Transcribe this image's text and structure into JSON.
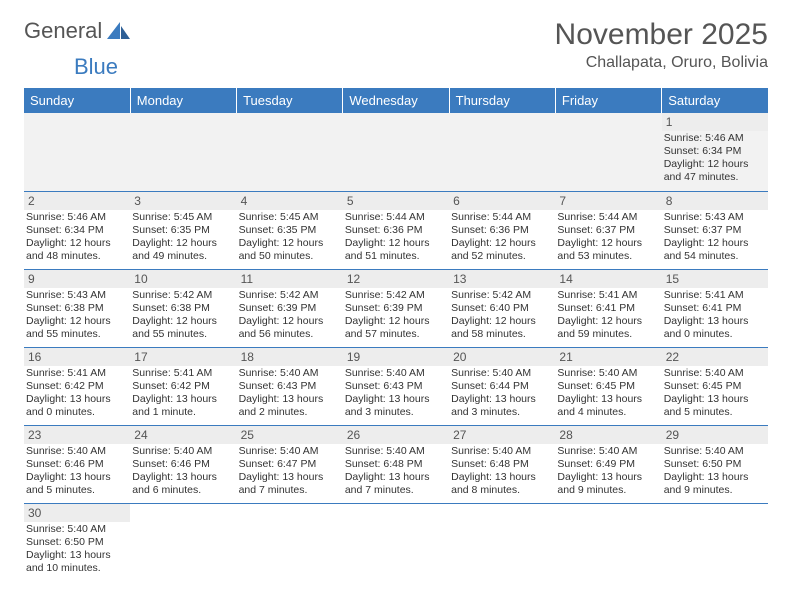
{
  "logo": {
    "text_gray": "General",
    "text_blue": "Blue"
  },
  "title": "November 2025",
  "location": "Challapata, Oruro, Bolivia",
  "colors": {
    "header_bg": "#3b7bbf",
    "header_fg": "#ffffff",
    "daynum_bg": "#ededed",
    "border": "#3b7bbf",
    "text": "#333333"
  },
  "day_headers": [
    "Sunday",
    "Monday",
    "Tuesday",
    "Wednesday",
    "Thursday",
    "Friday",
    "Saturday"
  ],
  "weeks": [
    [
      null,
      null,
      null,
      null,
      null,
      null,
      {
        "n": "1",
        "rise": "5:46 AM",
        "set": "6:34 PM",
        "dl": "12 hours and 47 minutes."
      }
    ],
    [
      {
        "n": "2",
        "rise": "5:46 AM",
        "set": "6:34 PM",
        "dl": "12 hours and 48 minutes."
      },
      {
        "n": "3",
        "rise": "5:45 AM",
        "set": "6:35 PM",
        "dl": "12 hours and 49 minutes."
      },
      {
        "n": "4",
        "rise": "5:45 AM",
        "set": "6:35 PM",
        "dl": "12 hours and 50 minutes."
      },
      {
        "n": "5",
        "rise": "5:44 AM",
        "set": "6:36 PM",
        "dl": "12 hours and 51 minutes."
      },
      {
        "n": "6",
        "rise": "5:44 AM",
        "set": "6:36 PM",
        "dl": "12 hours and 52 minutes."
      },
      {
        "n": "7",
        "rise": "5:44 AM",
        "set": "6:37 PM",
        "dl": "12 hours and 53 minutes."
      },
      {
        "n": "8",
        "rise": "5:43 AM",
        "set": "6:37 PM",
        "dl": "12 hours and 54 minutes."
      }
    ],
    [
      {
        "n": "9",
        "rise": "5:43 AM",
        "set": "6:38 PM",
        "dl": "12 hours and 55 minutes."
      },
      {
        "n": "10",
        "rise": "5:42 AM",
        "set": "6:38 PM",
        "dl": "12 hours and 55 minutes."
      },
      {
        "n": "11",
        "rise": "5:42 AM",
        "set": "6:39 PM",
        "dl": "12 hours and 56 minutes."
      },
      {
        "n": "12",
        "rise": "5:42 AM",
        "set": "6:39 PM",
        "dl": "12 hours and 57 minutes."
      },
      {
        "n": "13",
        "rise": "5:42 AM",
        "set": "6:40 PM",
        "dl": "12 hours and 58 minutes."
      },
      {
        "n": "14",
        "rise": "5:41 AM",
        "set": "6:41 PM",
        "dl": "12 hours and 59 minutes."
      },
      {
        "n": "15",
        "rise": "5:41 AM",
        "set": "6:41 PM",
        "dl": "13 hours and 0 minutes."
      }
    ],
    [
      {
        "n": "16",
        "rise": "5:41 AM",
        "set": "6:42 PM",
        "dl": "13 hours and 0 minutes."
      },
      {
        "n": "17",
        "rise": "5:41 AM",
        "set": "6:42 PM",
        "dl": "13 hours and 1 minute."
      },
      {
        "n": "18",
        "rise": "5:40 AM",
        "set": "6:43 PM",
        "dl": "13 hours and 2 minutes."
      },
      {
        "n": "19",
        "rise": "5:40 AM",
        "set": "6:43 PM",
        "dl": "13 hours and 3 minutes."
      },
      {
        "n": "20",
        "rise": "5:40 AM",
        "set": "6:44 PM",
        "dl": "13 hours and 3 minutes."
      },
      {
        "n": "21",
        "rise": "5:40 AM",
        "set": "6:45 PM",
        "dl": "13 hours and 4 minutes."
      },
      {
        "n": "22",
        "rise": "5:40 AM",
        "set": "6:45 PM",
        "dl": "13 hours and 5 minutes."
      }
    ],
    [
      {
        "n": "23",
        "rise": "5:40 AM",
        "set": "6:46 PM",
        "dl": "13 hours and 5 minutes."
      },
      {
        "n": "24",
        "rise": "5:40 AM",
        "set": "6:46 PM",
        "dl": "13 hours and 6 minutes."
      },
      {
        "n": "25",
        "rise": "5:40 AM",
        "set": "6:47 PM",
        "dl": "13 hours and 7 minutes."
      },
      {
        "n": "26",
        "rise": "5:40 AM",
        "set": "6:48 PM",
        "dl": "13 hours and 7 minutes."
      },
      {
        "n": "27",
        "rise": "5:40 AM",
        "set": "6:48 PM",
        "dl": "13 hours and 8 minutes."
      },
      {
        "n": "28",
        "rise": "5:40 AM",
        "set": "6:49 PM",
        "dl": "13 hours and 9 minutes."
      },
      {
        "n": "29",
        "rise": "5:40 AM",
        "set": "6:50 PM",
        "dl": "13 hours and 9 minutes."
      }
    ],
    [
      {
        "n": "30",
        "rise": "5:40 AM",
        "set": "6:50 PM",
        "dl": "13 hours and 10 minutes."
      },
      null,
      null,
      null,
      null,
      null,
      null
    ]
  ],
  "labels": {
    "sunrise": "Sunrise:",
    "sunset": "Sunset:",
    "daylight": "Daylight:"
  }
}
